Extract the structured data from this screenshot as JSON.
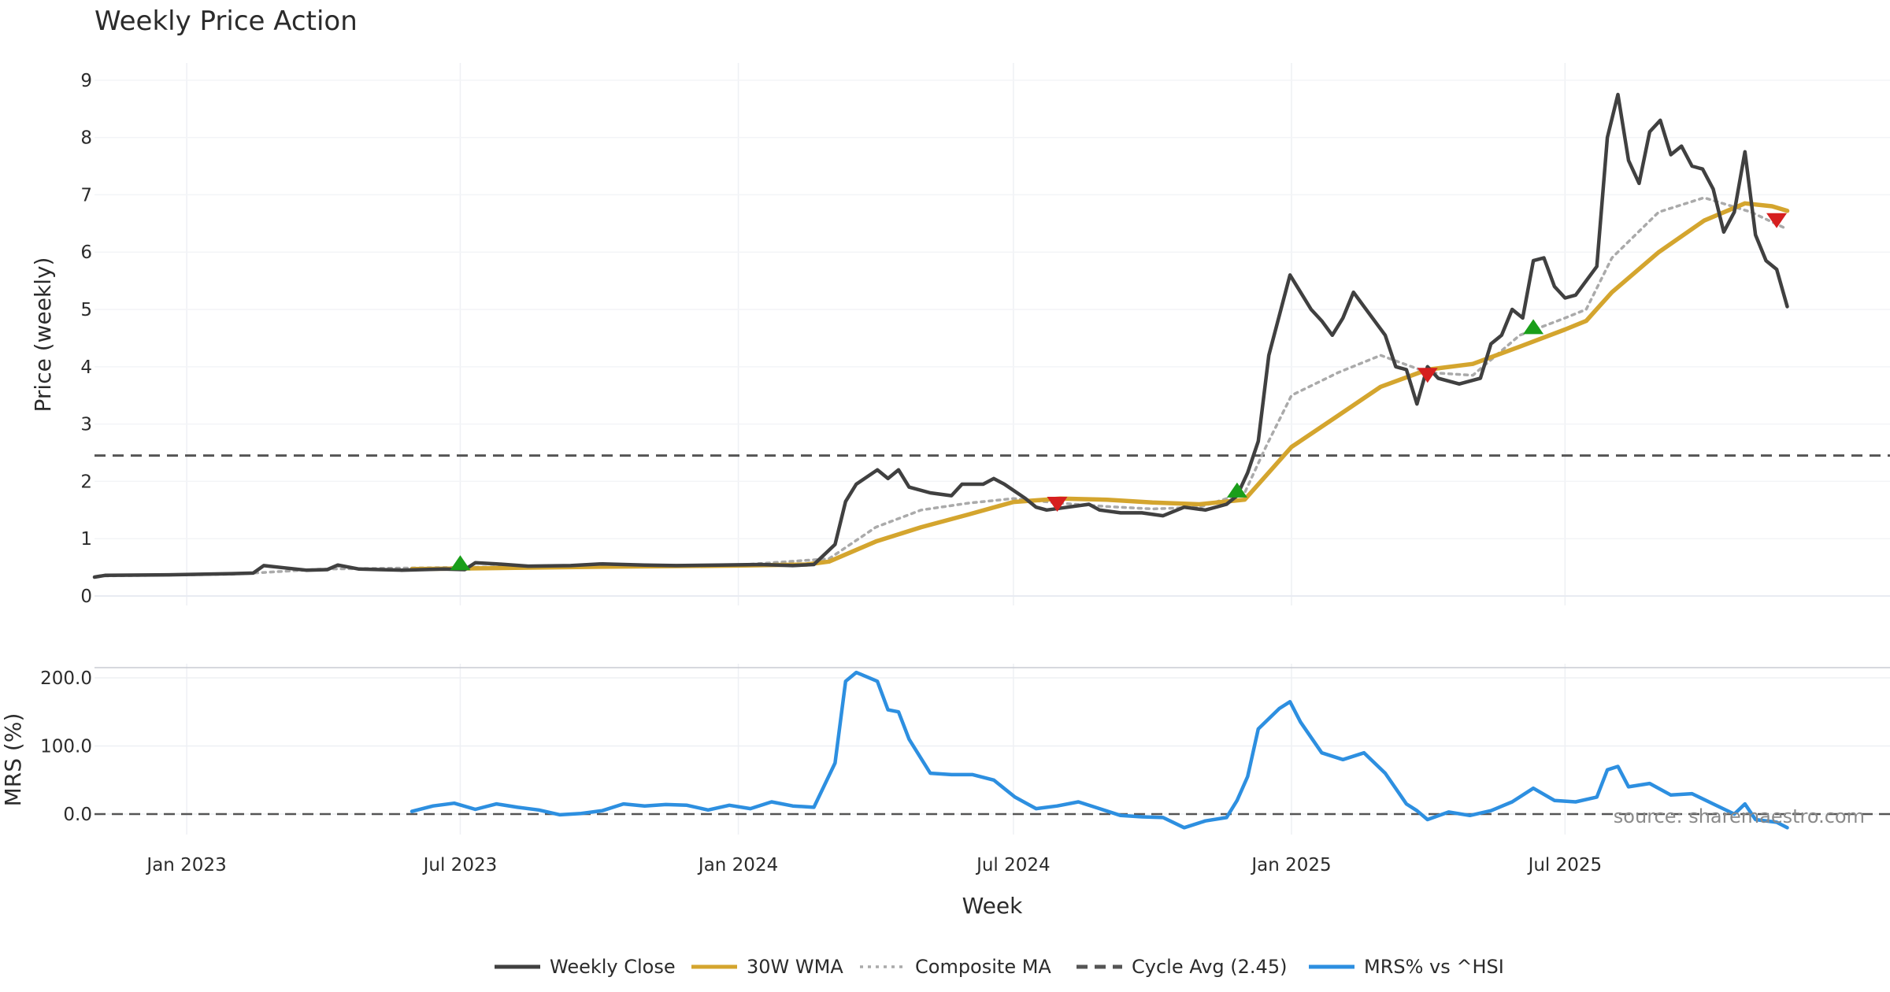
{
  "chart_data": {
    "type": "line",
    "title": "Weekly Price Action",
    "x_axis": {
      "label": "Week",
      "range": [
        "2022-11-01",
        "2026-02-01"
      ],
      "ticks": [
        {
          "date": "2023-01-01",
          "label": "Jan 2023"
        },
        {
          "date": "2023-07-01",
          "label": "Jul 2023"
        },
        {
          "date": "2024-01-01",
          "label": "Jan 2024"
        },
        {
          "date": "2024-07-01",
          "label": "Jul 2024"
        },
        {
          "date": "2025-01-01",
          "label": "Jan 2025"
        },
        {
          "date": "2025-07-01",
          "label": "Jul 2025"
        }
      ]
    },
    "price_panel": {
      "ylabel": "Price (weekly)",
      "ylim": [
        0,
        9.3
      ],
      "yticks": [
        "0",
        "1",
        "2",
        "3",
        "4",
        "5",
        "6",
        "7",
        "8",
        "9"
      ],
      "grid": true
    },
    "mrs_panel": {
      "ylabel": "MRS (%)",
      "ylim": [
        -30,
        215
      ],
      "yticks": [
        "0.0",
        "100.0",
        "200.0"
      ],
      "grid": true
    },
    "series": [
      {
        "name": "Weekly Close",
        "color": "#404040",
        "style": "solid",
        "panel": "price",
        "points": [
          [
            "2022-11-01",
            0.33
          ],
          [
            "2022-11-08",
            0.36
          ],
          [
            "2022-12-20",
            0.37
          ],
          [
            "2023-01-31",
            0.39
          ],
          [
            "2023-02-14",
            0.4
          ],
          [
            "2023-02-21",
            0.53
          ],
          [
            "2023-03-07",
            0.49
          ],
          [
            "2023-03-21",
            0.45
          ],
          [
            "2023-04-04",
            0.46
          ],
          [
            "2023-04-11",
            0.54
          ],
          [
            "2023-04-25",
            0.47
          ],
          [
            "2023-05-09",
            0.46
          ],
          [
            "2023-05-23",
            0.45
          ],
          [
            "2023-06-06",
            0.46
          ],
          [
            "2023-06-20",
            0.47
          ],
          [
            "2023-07-04",
            0.46
          ],
          [
            "2023-07-11",
            0.58
          ],
          [
            "2023-07-25",
            0.56
          ],
          [
            "2023-08-15",
            0.52
          ],
          [
            "2023-09-12",
            0.53
          ],
          [
            "2023-10-03",
            0.56
          ],
          [
            "2023-10-31",
            0.54
          ],
          [
            "2023-11-21",
            0.53
          ],
          [
            "2023-12-19",
            0.54
          ],
          [
            "2024-01-16",
            0.55
          ],
          [
            "2024-02-06",
            0.53
          ],
          [
            "2024-02-20",
            0.55
          ],
          [
            "2024-03-05",
            0.9
          ],
          [
            "2024-03-12",
            1.65
          ],
          [
            "2024-03-19",
            1.95
          ],
          [
            "2024-04-02",
            2.2
          ],
          [
            "2024-04-09",
            2.05
          ],
          [
            "2024-04-16",
            2.2
          ],
          [
            "2024-04-23",
            1.9
          ],
          [
            "2024-05-07",
            1.8
          ],
          [
            "2024-05-21",
            1.75
          ],
          [
            "2024-05-28",
            1.95
          ],
          [
            "2024-06-11",
            1.95
          ],
          [
            "2024-06-18",
            2.05
          ],
          [
            "2024-06-25",
            1.95
          ],
          [
            "2024-07-09",
            1.7
          ],
          [
            "2024-07-16",
            1.55
          ],
          [
            "2024-07-23",
            1.5
          ],
          [
            "2024-08-06",
            1.55
          ],
          [
            "2024-08-20",
            1.6
          ],
          [
            "2024-08-27",
            1.5
          ],
          [
            "2024-09-10",
            1.45
          ],
          [
            "2024-09-24",
            1.45
          ],
          [
            "2024-10-08",
            1.4
          ],
          [
            "2024-10-22",
            1.55
          ],
          [
            "2024-11-05",
            1.5
          ],
          [
            "2024-11-19",
            1.6
          ],
          [
            "2024-11-26",
            1.75
          ],
          [
            "2024-12-03",
            2.15
          ],
          [
            "2024-12-10",
            2.7
          ],
          [
            "2024-12-17",
            4.2
          ],
          [
            "2024-12-31",
            5.6
          ],
          [
            "2025-01-14",
            5.0
          ],
          [
            "2025-01-21",
            4.8
          ],
          [
            "2025-01-28",
            4.55
          ],
          [
            "2025-02-04",
            4.85
          ],
          [
            "2025-02-11",
            5.3
          ],
          [
            "2025-02-18",
            5.05
          ],
          [
            "2025-03-04",
            4.55
          ],
          [
            "2025-03-11",
            4.0
          ],
          [
            "2025-03-18",
            3.95
          ],
          [
            "2025-03-25",
            3.35
          ],
          [
            "2025-04-01",
            4.0
          ],
          [
            "2025-04-08",
            3.8
          ],
          [
            "2025-04-22",
            3.7
          ],
          [
            "2025-05-06",
            3.8
          ],
          [
            "2025-05-13",
            4.4
          ],
          [
            "2025-05-20",
            4.55
          ],
          [
            "2025-05-27",
            5.0
          ],
          [
            "2025-06-03",
            4.85
          ],
          [
            "2025-06-10",
            5.85
          ],
          [
            "2025-06-17",
            5.9
          ],
          [
            "2025-06-24",
            5.4
          ],
          [
            "2025-07-01",
            5.2
          ],
          [
            "2025-07-08",
            5.25
          ],
          [
            "2025-07-22",
            5.75
          ],
          [
            "2025-07-29",
            8.0
          ],
          [
            "2025-08-05",
            8.75
          ],
          [
            "2025-08-12",
            7.6
          ],
          [
            "2025-08-19",
            7.2
          ],
          [
            "2025-08-26",
            8.1
          ],
          [
            "2025-09-02",
            8.3
          ],
          [
            "2025-09-09",
            7.7
          ],
          [
            "2025-09-16",
            7.85
          ],
          [
            "2025-09-23",
            7.5
          ],
          [
            "2025-09-30",
            7.45
          ],
          [
            "2025-10-07",
            7.1
          ],
          [
            "2025-10-14",
            6.35
          ],
          [
            "2025-10-21",
            6.7
          ],
          [
            "2025-10-28",
            7.75
          ],
          [
            "2025-11-04",
            6.3
          ],
          [
            "2025-11-11",
            5.85
          ],
          [
            "2025-11-18",
            5.7
          ],
          [
            "2025-11-25",
            5.05
          ]
        ]
      },
      {
        "name": "30W WMA",
        "color": "#d4a52e",
        "style": "solid",
        "panel": "price",
        "points": [
          [
            "2023-05-30",
            0.47
          ],
          [
            "2023-07-01",
            0.48
          ],
          [
            "2023-10-01",
            0.51
          ],
          [
            "2024-01-01",
            0.53
          ],
          [
            "2024-02-15",
            0.55
          ],
          [
            "2024-03-01",
            0.6
          ],
          [
            "2024-04-01",
            0.95
          ],
          [
            "2024-05-01",
            1.2
          ],
          [
            "2024-06-01",
            1.42
          ],
          [
            "2024-07-01",
            1.64
          ],
          [
            "2024-08-01",
            1.7
          ],
          [
            "2024-09-01",
            1.68
          ],
          [
            "2024-10-01",
            1.63
          ],
          [
            "2024-11-01",
            1.6
          ],
          [
            "2024-12-01",
            1.68
          ],
          [
            "2025-01-01",
            2.6
          ],
          [
            "2025-02-01",
            3.15
          ],
          [
            "2025-03-01",
            3.65
          ],
          [
            "2025-04-01",
            3.95
          ],
          [
            "2025-05-01",
            4.05
          ],
          [
            "2025-06-01",
            4.35
          ],
          [
            "2025-07-01",
            4.65
          ],
          [
            "2025-07-15",
            4.8
          ],
          [
            "2025-08-01",
            5.3
          ],
          [
            "2025-09-01",
            6.0
          ],
          [
            "2025-10-01",
            6.55
          ],
          [
            "2025-10-28",
            6.85
          ],
          [
            "2025-11-15",
            6.8
          ],
          [
            "2025-11-25",
            6.72
          ]
        ]
      },
      {
        "name": "Composite MA",
        "color": "#aaaaaa",
        "style": "dotted",
        "panel": "price",
        "points": [
          [
            "2022-11-08",
            0.35
          ],
          [
            "2023-02-01",
            0.38
          ],
          [
            "2023-04-01",
            0.47
          ],
          [
            "2023-07-01",
            0.5
          ],
          [
            "2024-01-01",
            0.54
          ],
          [
            "2024-03-01",
            0.65
          ],
          [
            "2024-04-01",
            1.2
          ],
          [
            "2024-05-01",
            1.5
          ],
          [
            "2024-06-01",
            1.62
          ],
          [
            "2024-07-01",
            1.7
          ],
          [
            "2024-08-01",
            1.62
          ],
          [
            "2024-09-01",
            1.56
          ],
          [
            "2024-10-01",
            1.52
          ],
          [
            "2024-11-01",
            1.55
          ],
          [
            "2024-12-01",
            1.8
          ],
          [
            "2024-12-15",
            2.6
          ],
          [
            "2025-01-01",
            3.5
          ],
          [
            "2025-02-01",
            3.9
          ],
          [
            "2025-03-01",
            4.2
          ],
          [
            "2025-04-01",
            3.9
          ],
          [
            "2025-05-01",
            3.85
          ],
          [
            "2025-06-01",
            4.55
          ],
          [
            "2025-07-01",
            4.85
          ],
          [
            "2025-07-15",
            5.0
          ],
          [
            "2025-08-01",
            5.9
          ],
          [
            "2025-09-01",
            6.7
          ],
          [
            "2025-10-01",
            6.95
          ],
          [
            "2025-11-01",
            6.7
          ],
          [
            "2025-11-25",
            6.4
          ]
        ]
      },
      {
        "name": "Cycle Avg (2.45)",
        "color": "#555555",
        "style": "dashed",
        "panel": "price",
        "value": 2.45
      },
      {
        "name": "MRS% vs ^HSI",
        "color": "#2d8fe0",
        "style": "solid",
        "panel": "mrs",
        "points": [
          [
            "2023-05-30",
            4
          ],
          [
            "2023-06-13",
            12
          ],
          [
            "2023-06-27",
            16
          ],
          [
            "2023-07-11",
            7
          ],
          [
            "2023-07-25",
            15
          ],
          [
            "2023-08-08",
            10
          ],
          [
            "2023-08-22",
            6
          ],
          [
            "2023-09-05",
            -1
          ],
          [
            "2023-09-19",
            1
          ],
          [
            "2023-10-03",
            5
          ],
          [
            "2023-10-17",
            15
          ],
          [
            "2023-10-31",
            12
          ],
          [
            "2023-11-14",
            14
          ],
          [
            "2023-11-28",
            13
          ],
          [
            "2023-12-12",
            6
          ],
          [
            "2023-12-26",
            13
          ],
          [
            "2024-01-09",
            8
          ],
          [
            "2024-01-23",
            18
          ],
          [
            "2024-02-06",
            12
          ],
          [
            "2024-02-20",
            10
          ],
          [
            "2024-03-05",
            75
          ],
          [
            "2024-03-12",
            195
          ],
          [
            "2024-03-19",
            208
          ],
          [
            "2024-04-02",
            195
          ],
          [
            "2024-04-09",
            153
          ],
          [
            "2024-04-16",
            150
          ],
          [
            "2024-04-23",
            110
          ],
          [
            "2024-05-07",
            60
          ],
          [
            "2024-05-21",
            58
          ],
          [
            "2024-06-04",
            58
          ],
          [
            "2024-06-18",
            50
          ],
          [
            "2024-07-02",
            25
          ],
          [
            "2024-07-16",
            8
          ],
          [
            "2024-07-30",
            12
          ],
          [
            "2024-08-13",
            18
          ],
          [
            "2024-08-27",
            8
          ],
          [
            "2024-09-10",
            -2
          ],
          [
            "2024-09-24",
            -4
          ],
          [
            "2024-10-08",
            -5
          ],
          [
            "2024-10-22",
            -20
          ],
          [
            "2024-11-05",
            -10
          ],
          [
            "2024-11-19",
            -5
          ],
          [
            "2024-11-26",
            20
          ],
          [
            "2024-12-03",
            55
          ],
          [
            "2024-12-10",
            125
          ],
          [
            "2024-12-24",
            155
          ],
          [
            "2024-12-31",
            165
          ],
          [
            "2025-01-07",
            135
          ],
          [
            "2025-01-21",
            90
          ],
          [
            "2025-02-04",
            80
          ],
          [
            "2025-02-18",
            90
          ],
          [
            "2025-03-04",
            60
          ],
          [
            "2025-03-18",
            15
          ],
          [
            "2025-03-25",
            5
          ],
          [
            "2025-04-01",
            -8
          ],
          [
            "2025-04-15",
            3
          ],
          [
            "2025-04-29",
            -2
          ],
          [
            "2025-05-13",
            5
          ],
          [
            "2025-05-27",
            18
          ],
          [
            "2025-06-10",
            38
          ],
          [
            "2025-06-24",
            20
          ],
          [
            "2025-07-08",
            18
          ],
          [
            "2025-07-22",
            25
          ],
          [
            "2025-07-29",
            65
          ],
          [
            "2025-08-05",
            70
          ],
          [
            "2025-08-12",
            40
          ],
          [
            "2025-08-26",
            45
          ],
          [
            "2025-09-09",
            28
          ],
          [
            "2025-09-23",
            30
          ],
          [
            "2025-10-07",
            15
          ],
          [
            "2025-10-21",
            0
          ],
          [
            "2025-10-28",
            15
          ],
          [
            "2025-11-04",
            -8
          ],
          [
            "2025-11-18",
            -12
          ],
          [
            "2025-11-25",
            -20
          ]
        ]
      }
    ],
    "markers": [
      {
        "type": "buy",
        "color": "#1a9e1a",
        "date": "2023-07-01",
        "value": 0.58
      },
      {
        "type": "sell",
        "color": "#d61f1f",
        "date": "2024-07-30",
        "value": 1.6
      },
      {
        "type": "buy",
        "color": "#1a9e1a",
        "date": "2024-11-26",
        "value": 1.85
      },
      {
        "type": "sell",
        "color": "#d61f1f",
        "date": "2025-04-01",
        "value": 3.85
      },
      {
        "type": "buy",
        "color": "#1a9e1a",
        "date": "2025-06-10",
        "value": 4.7
      },
      {
        "type": "sell",
        "color": "#d61f1f",
        "date": "2025-11-18",
        "value": 6.55
      }
    ],
    "legend": {
      "placement": "bottom-center",
      "entries": [
        "Weekly Close",
        "30W WMA",
        "Composite MA",
        "Cycle Avg (2.45)",
        "MRS% vs ^HSI"
      ]
    },
    "source_text": "source: sharemaestro.com"
  }
}
